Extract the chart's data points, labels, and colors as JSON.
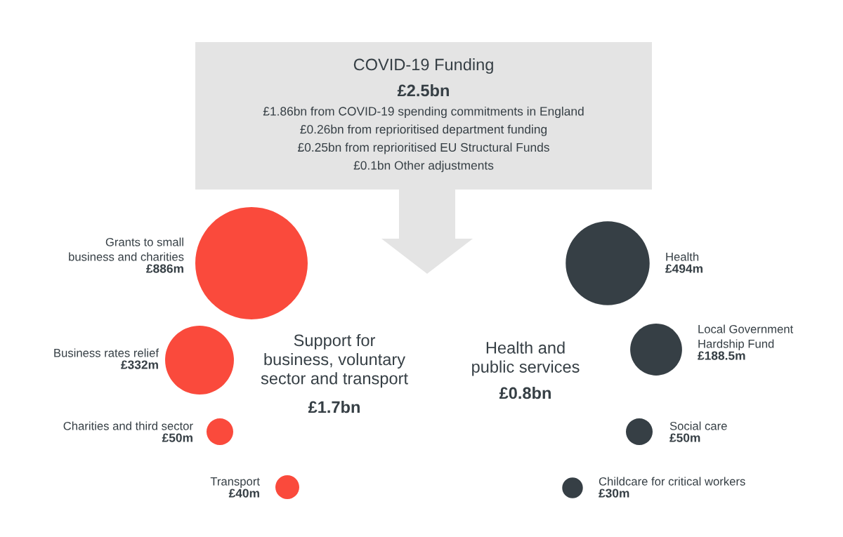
{
  "chart_data": [
    {
      "type": "other",
      "title": "COVID-19 Funding",
      "subtitle": "£2.5bn",
      "annotations": [
        "£1.86bn from COVID-19 spending commitments in England",
        "£0.26bn from reprioritised department funding",
        "£0.25bn from reprioritised EU Structural Funds",
        "£0.1bn Other adjustments"
      ]
    },
    {
      "type": "other",
      "title": "Support for\nbusiness, voluntary\nsector and transport",
      "annotations": [
        "£1.7bn"
      ],
      "categories": [
        "Grants to small\nbusiness and charities",
        "Business rates relief",
        "Charities and third sector",
        "Transport"
      ],
      "values": [
        886,
        332,
        50,
        40
      ],
      "value_labels": [
        "£886m",
        "£332m",
        "£50m",
        "£40m"
      ],
      "colors": [
        "#fa4a3c",
        "#fa4a3c",
        "#fa4a3c",
        "#fa4a3c"
      ]
    },
    {
      "type": "other",
      "title": "Health and\npublic services",
      "annotations": [
        "£0.8bn"
      ],
      "categories": [
        "Health",
        "Local Government\nHardship Fund",
        "Social care",
        "Childcare for critical workers"
      ],
      "values": [
        494,
        188.5,
        50,
        30
      ],
      "value_labels": [
        "£494m",
        "£188.5m",
        "£50m",
        "£30m"
      ],
      "colors": [
        "#363f45",
        "#363f45",
        "#363f45",
        "#363f45"
      ]
    }
  ]
}
